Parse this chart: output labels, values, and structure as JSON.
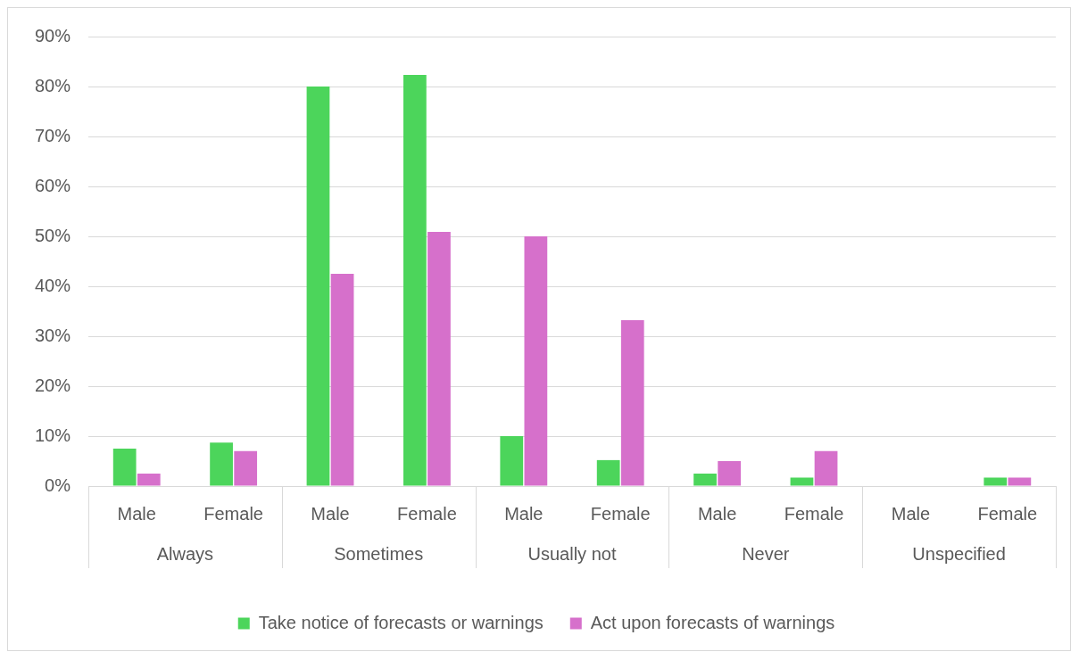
{
  "chart_data": {
    "type": "bar",
    "categories": [
      "Male",
      "Female",
      "Male",
      "Female",
      "Male",
      "Female",
      "Male",
      "Female",
      "Male",
      "Female"
    ],
    "annotations": [
      "Always",
      "Sometimes",
      "Usually not",
      "Never",
      "Unspecified"
    ],
    "series": [
      {
        "name": "Take notice of forecasts or warnings",
        "color": "#4cd55b",
        "values": [
          7.5,
          8.7,
          80,
          82.3,
          10,
          5.2,
          2.5,
          1.7,
          0,
          1.7
        ]
      },
      {
        "name": "Act upon forecasts of warnings",
        "color": "#d670cb",
        "values": [
          2.5,
          7,
          42.5,
          50.9,
          50,
          33.2,
          5,
          7,
          0,
          1.7
        ]
      }
    ],
    "ylim": [
      0,
      90
    ],
    "yticks": [
      {
        "value": 0,
        "label": "0%"
      },
      {
        "value": 10,
        "label": "10%"
      },
      {
        "value": 20,
        "label": "20%"
      },
      {
        "value": 30,
        "label": "30%"
      },
      {
        "value": 40,
        "label": "40%"
      },
      {
        "value": 50,
        "label": "50%"
      },
      {
        "value": 60,
        "label": "60%"
      },
      {
        "value": 70,
        "label": "70%"
      },
      {
        "value": 80,
        "label": "80%"
      },
      {
        "value": 90,
        "label": "90%"
      }
    ],
    "grid": "y",
    "legend": "bottom"
  }
}
